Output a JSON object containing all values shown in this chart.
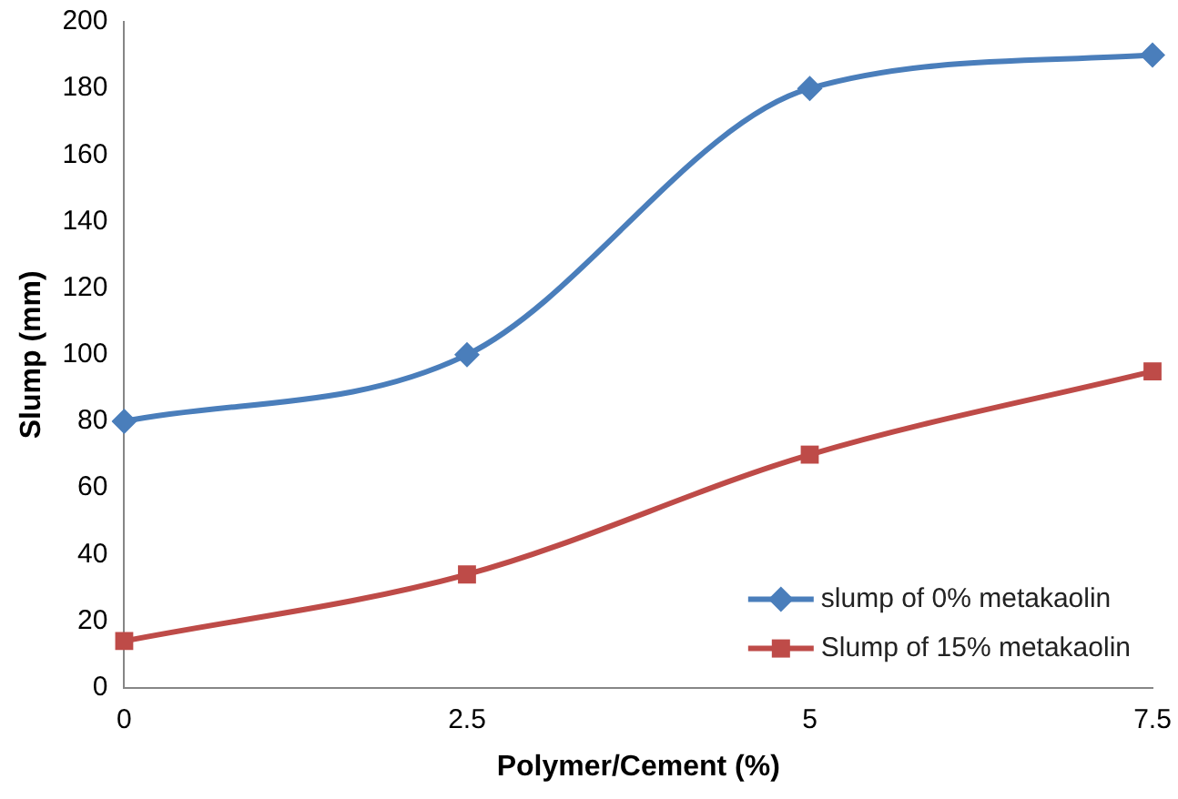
{
  "chart_data": {
    "type": "line",
    "xlabel": "Polymer/Cement (%)",
    "ylabel": "Slump (mm)",
    "categories": [
      "0",
      "2.5",
      "5",
      "7.5"
    ],
    "ylim": [
      0,
      200
    ],
    "yticks": [
      0,
      20,
      40,
      60,
      80,
      100,
      120,
      140,
      160,
      180,
      200
    ],
    "grid": false,
    "legend": "bottom right",
    "line_style": "solid",
    "series": [
      {
        "name": "slump of 0% metakaolin",
        "color": "#4a7ebb",
        "marker": "diamond",
        "values": [
          80,
          100,
          180,
          190
        ]
      },
      {
        "name": "Slump of 15% metakaolin",
        "color": "#be4b48",
        "marker": "square",
        "values": [
          14,
          34,
          70,
          95
        ]
      }
    ]
  }
}
